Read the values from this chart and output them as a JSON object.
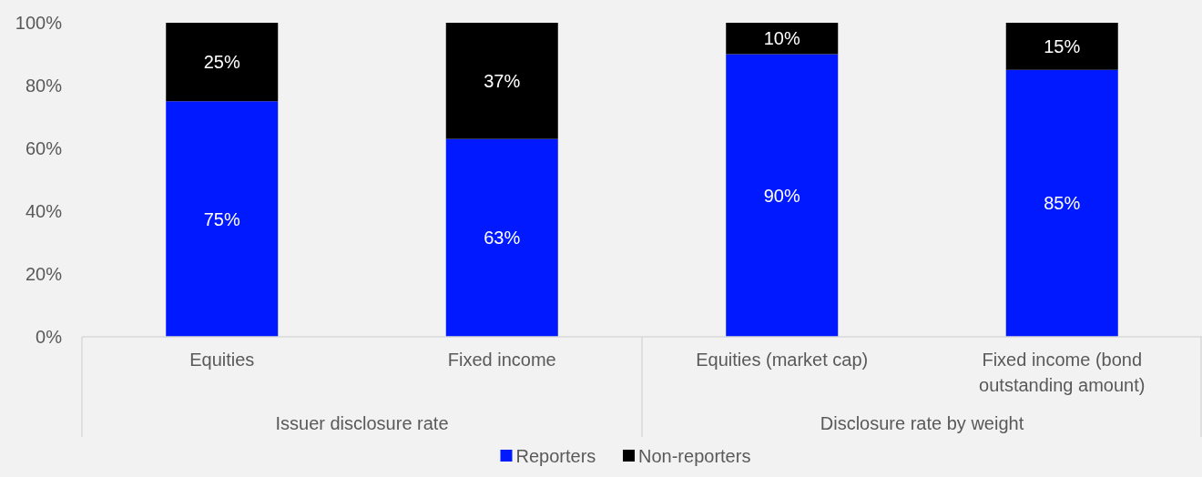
{
  "chart_data": {
    "type": "bar",
    "stacked": true,
    "categories": [
      "Equities",
      "Fixed income",
      "Equities (market cap)",
      "Fixed income (bond outstanding amount)"
    ],
    "series": [
      {
        "name": "Reporters",
        "color": "#0019ff",
        "values": [
          75,
          63,
          90,
          85
        ],
        "value_labels": [
          "75%",
          "63%",
          "90%",
          "85%"
        ]
      },
      {
        "name": "Non-reporters",
        "color": "#000000",
        "values": [
          25,
          37,
          10,
          15
        ],
        "value_labels": [
          "25%",
          "37%",
          "10%",
          "15%"
        ]
      }
    ],
    "ylim": [
      0,
      100
    ],
    "yticks": [
      {
        "value": 0,
        "label": "0%"
      },
      {
        "value": 20,
        "label": "20%"
      },
      {
        "value": 40,
        "label": "40%"
      },
      {
        "value": 60,
        "label": "60%"
      },
      {
        "value": 80,
        "label": "80%"
      },
      {
        "value": 100,
        "label": "100%"
      }
    ],
    "legend": "bottom",
    "annotations": [
      "Issuer disclosure rate",
      "Disclosure rate by weight"
    ]
  }
}
